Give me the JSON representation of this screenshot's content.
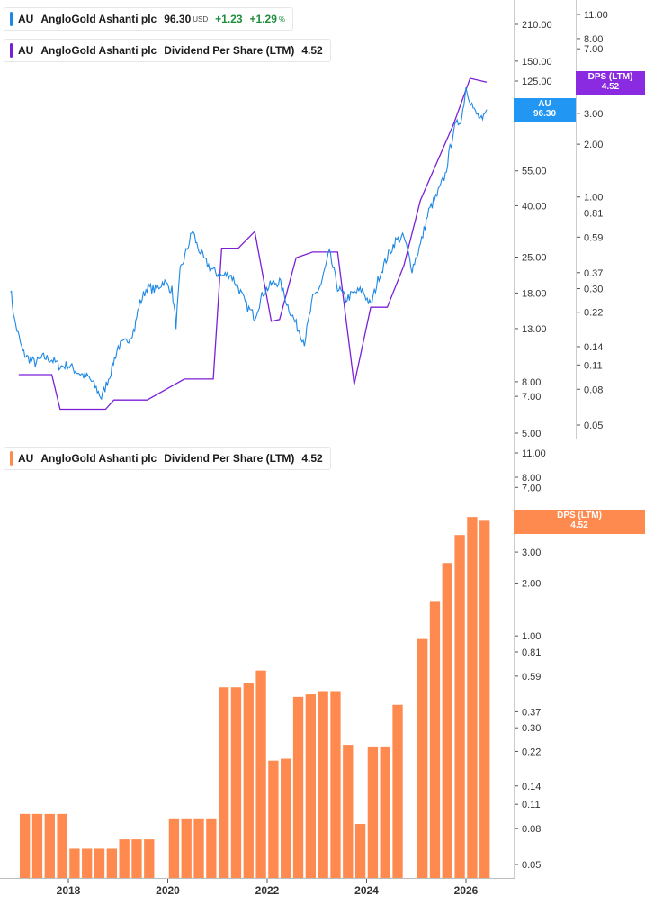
{
  "legend_price": {
    "ticker": "AU",
    "name": "AngloGold Ashanti plc",
    "price": "96.30",
    "currency": "USD",
    "change": "+1.23",
    "change_pct": "+1.29",
    "pct_sign": "%",
    "color": "#1e88e5"
  },
  "legend_dps_top": {
    "ticker": "AU",
    "name": "AngloGold Ashanti plc",
    "metric": "Dividend Per Share (LTM)",
    "value": "4.52",
    "color": "#7b1fd6"
  },
  "legend_dps_bottom": {
    "ticker": "AU",
    "name": "AngloGold Ashanti plc",
    "metric": "Dividend Per Share (LTM)",
    "value": "4.52",
    "color": "#ff8a50"
  },
  "badges": {
    "price": {
      "title": "AU",
      "value": "96.30",
      "color": "#2196f3"
    },
    "dps_top": {
      "title": "DPS (LTM)",
      "value": "4.52",
      "color": "#8a2be2"
    },
    "dps_bottom": {
      "title": "DPS (LTM)",
      "value": "4.52",
      "color": "#ff8a50"
    }
  },
  "chart_data": [
    {
      "type": "line",
      "title": "",
      "scale": "log",
      "xlabel": "",
      "x_ticks": [
        "2018",
        "2020",
        "2022",
        "2024",
        "2026"
      ],
      "y_left_ticks": [
        5.0,
        7.0,
        8.0,
        13.0,
        18.0,
        25.0,
        40.0,
        55.0,
        125.0,
        150.0,
        210.0
      ],
      "y_left_tick_labels": [
        "5.00",
        "7.00",
        "8.00",
        "13.00",
        "18.00",
        "25.00",
        "40.00",
        "55.00",
        "125.00",
        "150.00",
        "210.00"
      ],
      "y_right_ticks": [
        0.05,
        0.08,
        0.11,
        0.14,
        0.22,
        0.3,
        0.37,
        0.59,
        0.81,
        1.0,
        2.0,
        3.0,
        7.0,
        8.0,
        11.0
      ],
      "y_right_tick_labels": [
        "0.05",
        "0.08",
        "0.11",
        "0.14",
        "0.22",
        "0.30",
        "0.37",
        "0.59",
        "0.81",
        "1.00",
        "2.00",
        "3.00",
        "7.00",
        "8.00",
        "11.00"
      ],
      "series": [
        {
          "name": "AU",
          "axis": "left",
          "color": "#1e88e5",
          "points": [
            [
              "2016-11",
              19.0
            ],
            [
              "2016-12",
              14.0
            ],
            [
              "2017-02",
              10.5
            ],
            [
              "2017-03",
              10.0
            ],
            [
              "2017-05",
              9.5
            ],
            [
              "2017-07",
              10.0
            ],
            [
              "2017-09",
              9.8
            ],
            [
              "2017-11",
              9.2
            ],
            [
              "2018-01",
              9.3
            ],
            [
              "2018-03",
              8.8
            ],
            [
              "2018-05",
              8.4
            ],
            [
              "2018-06",
              8.3
            ],
            [
              "2018-08",
              7.4
            ],
            [
              "2018-09",
              6.9
            ],
            [
              "2018-11",
              8.5
            ],
            [
              "2019-01",
              11.0
            ],
            [
              "2019-03",
              11.5
            ],
            [
              "2019-05",
              13.0
            ],
            [
              "2019-06",
              16.0
            ],
            [
              "2019-08",
              19.0
            ],
            [
              "2019-10",
              18.5
            ],
            [
              "2019-12",
              20.0
            ],
            [
              "2020-02",
              18.5
            ],
            [
              "2020-03",
              13.5
            ],
            [
              "2020-04",
              22.0
            ],
            [
              "2020-06",
              28.0
            ],
            [
              "2020-07",
              32.0
            ],
            [
              "2020-08",
              28.0
            ],
            [
              "2020-10",
              24.0
            ],
            [
              "2020-12",
              22.0
            ],
            [
              "2021-02",
              21.0
            ],
            [
              "2021-04",
              21.5
            ],
            [
              "2021-06",
              19.0
            ],
            [
              "2021-08",
              16.0
            ],
            [
              "2021-10",
              14.5
            ],
            [
              "2021-12",
              18.0
            ],
            [
              "2022-02",
              19.5
            ],
            [
              "2022-04",
              20.0
            ],
            [
              "2022-06",
              16.0
            ],
            [
              "2022-08",
              13.5
            ],
            [
              "2022-10",
              11.5
            ],
            [
              "2022-12",
              17.0
            ],
            [
              "2023-02",
              19.5
            ],
            [
              "2023-04",
              26.0
            ],
            [
              "2023-06",
              19.0
            ],
            [
              "2023-08",
              17.0
            ],
            [
              "2023-10",
              18.0
            ],
            [
              "2023-12",
              18.5
            ],
            [
              "2024-02",
              16.0
            ],
            [
              "2024-04",
              21.0
            ],
            [
              "2024-06",
              25.0
            ],
            [
              "2024-08",
              29.0
            ],
            [
              "2024-10",
              30.0
            ],
            [
              "2024-12",
              22.5
            ],
            [
              "2025-02",
              28.0
            ],
            [
              "2025-04",
              38.0
            ],
            [
              "2025-06",
              44.0
            ],
            [
              "2025-08",
              53.0
            ],
            [
              "2025-10",
              80.0
            ],
            [
              "2025-12",
              90.0
            ],
            [
              "2026-01",
              118.0
            ],
            [
              "2026-03",
              95.0
            ],
            [
              "2026-05",
              86.0
            ],
            [
              "2026-06",
              96.3
            ]
          ]
        },
        {
          "name": "DPS (LTM)",
          "axis": "right",
          "color": "#7b1fd6",
          "points": [
            [
              "2017-01",
              0.097
            ],
            [
              "2017-09",
              0.097
            ],
            [
              "2017-11",
              0.0615
            ],
            [
              "2018-10",
              0.0615
            ],
            [
              "2018-12",
              0.0695
            ],
            [
              "2019-08",
              0.0695
            ],
            [
              "2020-05",
              0.0915
            ],
            [
              "2020-12",
              0.0915
            ],
            [
              "2021-02",
              0.51
            ],
            [
              "2021-06",
              0.51
            ],
            [
              "2021-10",
              0.635
            ],
            [
              "2022-02",
              0.195
            ],
            [
              "2022-04",
              0.2
            ],
            [
              "2022-08",
              0.45
            ],
            [
              "2022-12",
              0.485
            ],
            [
              "2023-06",
              0.485
            ],
            [
              "2023-10",
              0.085
            ],
            [
              "2024-02",
              0.235
            ],
            [
              "2024-06",
              0.235
            ],
            [
              "2024-10",
              0.405
            ],
            [
              "2025-02",
              0.96
            ],
            [
              "2025-06",
              1.58
            ],
            [
              "2025-10",
              2.6
            ],
            [
              "2026-02",
              4.75
            ],
            [
              "2026-06",
              4.52
            ]
          ]
        }
      ]
    },
    {
      "type": "bar",
      "title": "",
      "scale": "log",
      "xlabel": "",
      "x_ticks": [
        "2018",
        "2020",
        "2022",
        "2024",
        "2026"
      ],
      "y_ticks": [
        0.05,
        0.08,
        0.11,
        0.14,
        0.22,
        0.3,
        0.37,
        0.59,
        0.81,
        1.0,
        2.0,
        3.0,
        7.0,
        8.0,
        11.0
      ],
      "y_tick_labels": [
        "0.05",
        "0.08",
        "0.11",
        "0.14",
        "0.22",
        "0.30",
        "0.37",
        "0.59",
        "0.81",
        "1.00",
        "2.00",
        "3.00",
        "7.00",
        "8.00",
        "11.00"
      ],
      "series": [
        {
          "name": "DPS (LTM)",
          "color": "#ff8a50",
          "points": [
            [
              "2017-Q1",
              0.097
            ],
            [
              "2017-Q2",
              0.097
            ],
            [
              "2017-Q3",
              0.097
            ],
            [
              "2017-Q4",
              0.097
            ],
            [
              "2018-Q1",
              0.0615
            ],
            [
              "2018-Q2",
              0.0615
            ],
            [
              "2018-Q3",
              0.0615
            ],
            [
              "2018-Q4",
              0.0615
            ],
            [
              "2019-Q1",
              0.0695
            ],
            [
              "2019-Q2",
              0.0695
            ],
            [
              "2019-Q3",
              0.0695
            ],
            [
              "2020-Q1",
              0.0915
            ],
            [
              "2020-Q2",
              0.0915
            ],
            [
              "2020-Q3",
              0.0915
            ],
            [
              "2020-Q4",
              0.0915
            ],
            [
              "2021-Q1",
              0.51
            ],
            [
              "2021-Q2",
              0.51
            ],
            [
              "2021-Q3",
              0.54
            ],
            [
              "2021-Q4",
              0.635
            ],
            [
              "2022-Q1",
              0.195
            ],
            [
              "2022-Q2",
              0.2
            ],
            [
              "2022-Q3",
              0.45
            ],
            [
              "2022-Q4",
              0.465
            ],
            [
              "2023-Q1",
              0.485
            ],
            [
              "2023-Q2",
              0.485
            ],
            [
              "2023-Q3",
              0.24
            ],
            [
              "2023-Q4",
              0.085
            ],
            [
              "2024-Q1",
              0.235
            ],
            [
              "2024-Q2",
              0.235
            ],
            [
              "2024-Q3",
              0.405
            ],
            [
              "2025-Q1",
              0.96
            ],
            [
              "2025-Q2",
              1.58
            ],
            [
              "2025-Q3",
              2.6
            ],
            [
              "2025-Q4",
              3.75
            ],
            [
              "2026-Q1",
              4.75
            ],
            [
              "2026-Q2",
              4.52
            ]
          ]
        }
      ]
    }
  ]
}
